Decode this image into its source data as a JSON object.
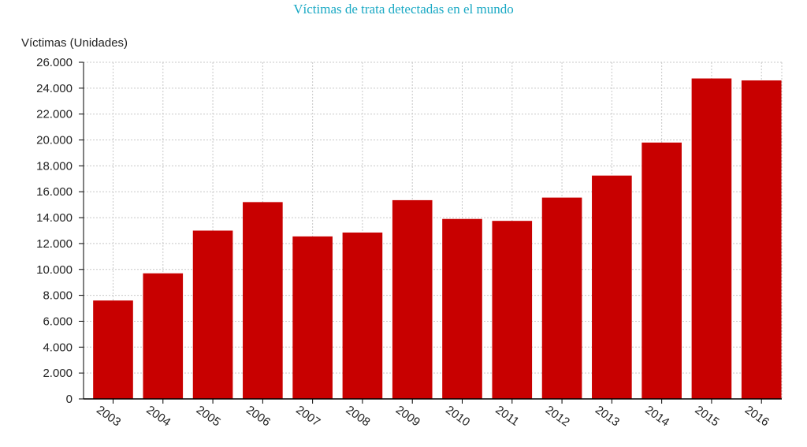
{
  "chart_data": {
    "type": "bar",
    "title": "Víctimas de trata detectadas en el mundo",
    "ylabel": "Víctimas (Unidades)",
    "xlabel": "",
    "categories": [
      "2003",
      "2004",
      "2005",
      "2006",
      "2007",
      "2008",
      "2009",
      "2010",
      "2011",
      "2012",
      "2013",
      "2014",
      "2015",
      "2016"
    ],
    "values": [
      7600,
      9700,
      13000,
      15200,
      12550,
      12850,
      15350,
      13900,
      13750,
      15550,
      17250,
      19800,
      24750,
      24600
    ],
    "ylim": [
      0,
      26000
    ],
    "yticks": [
      "0",
      "2.000",
      "4.000",
      "6.000",
      "8.000",
      "10.000",
      "12.000",
      "14.000",
      "16.000",
      "18.000",
      "20.000",
      "22.000",
      "24.000",
      "26.000"
    ],
    "grid": true,
    "bar_color": "#c80000",
    "grid_color": "#c8c8c8",
    "axis_color": "#000000"
  }
}
